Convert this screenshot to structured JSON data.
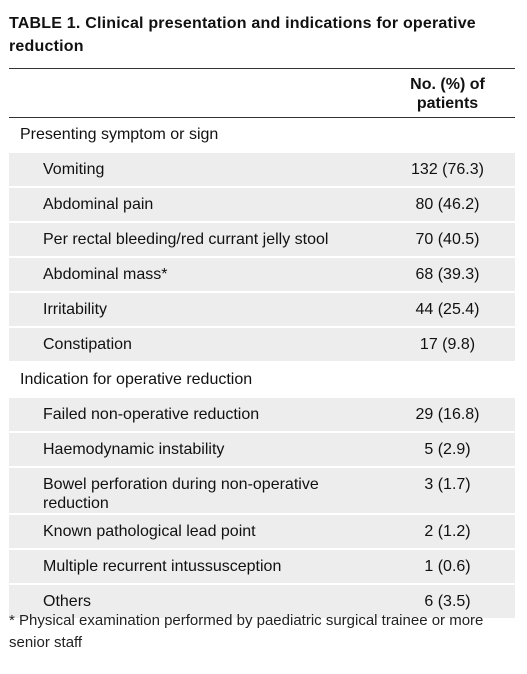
{
  "table": {
    "label": "TABLE 1.",
    "title": "Clinical presentation and indications for operative reduction",
    "header": [
      "",
      "No. (%) of patients"
    ],
    "sections": [
      {
        "heading": "Presenting symptom or sign",
        "rows": [
          [
            "Vomiting",
            "132 (76.3)"
          ],
          [
            "Abdominal pain",
            "80 (46.2)"
          ],
          [
            "Per rectal bleeding/red currant jelly stool",
            "70 (40.5)"
          ],
          [
            "Abdominal mass*",
            "68 (39.3)"
          ],
          [
            "Irritability",
            "44 (25.4)"
          ],
          [
            "Constipation",
            "17 (9.8)"
          ]
        ]
      },
      {
        "heading": "Indication for operative reduction",
        "rows": [
          [
            "Failed non-operative reduction",
            "29 (16.8)"
          ],
          [
            "Haemodynamic instability",
            "5 (2.9)"
          ],
          [
            "Bowel perforation during non-operative reduction",
            "3 (1.7)"
          ],
          [
            "Known pathological lead point",
            "2 (1.2)"
          ],
          [
            "Multiple recurrent intussusception",
            "1 (0.6)"
          ],
          [
            "Others",
            "6 (3.5)"
          ]
        ]
      }
    ],
    "footnote": "* Physical examination performed by paediatric surgical trainee or more senior staff"
  }
}
